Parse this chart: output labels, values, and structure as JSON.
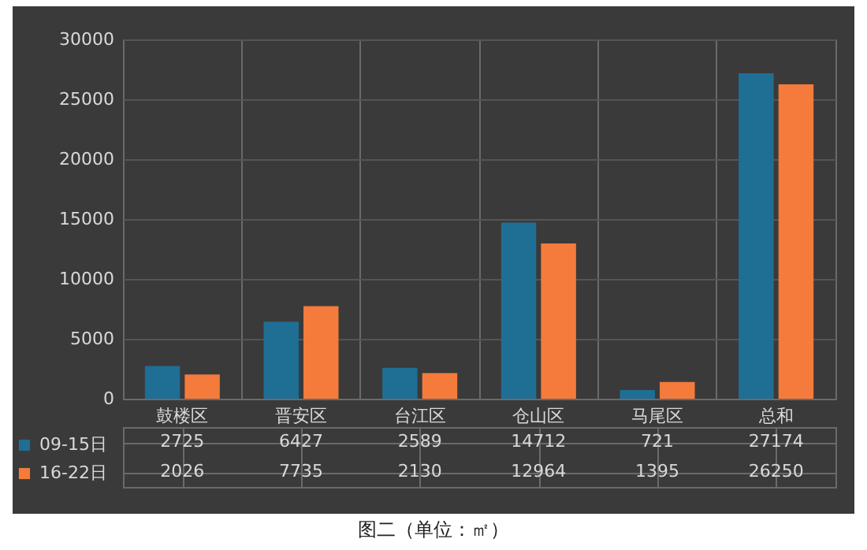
{
  "chart_data": {
    "type": "bar",
    "categories": [
      "鼓楼区",
      "晋安区",
      "台江区",
      "仓山区",
      "马尾区",
      "总和"
    ],
    "series": [
      {
        "name": "09-15日",
        "color": "#1f6e94",
        "values": [
          2725,
          6427,
          2589,
          14712,
          721,
          27174
        ]
      },
      {
        "name": "16-22日",
        "color": "#f47b3b",
        "values": [
          2026,
          7735,
          2130,
          12964,
          1395,
          26250
        ]
      }
    ],
    "ylim": [
      0,
      30000
    ],
    "yticks": [
      0,
      5000,
      10000,
      15000,
      20000,
      25000,
      30000
    ],
    "grid": "y",
    "legend": "bottom left",
    "data_labels": true,
    "annotations": [
      "图二（单位：㎡）"
    ]
  }
}
